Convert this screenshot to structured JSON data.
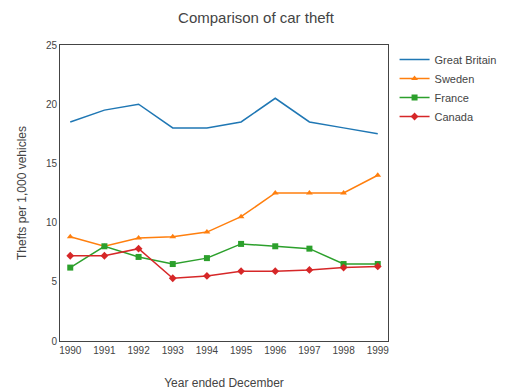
{
  "chart_data": {
    "type": "line",
    "title": "Comparison of car theft",
    "xlabel": "Year ended December",
    "ylabel": "Thefts per 1,000 vehicles",
    "x": [
      1990,
      1991,
      1992,
      1993,
      1994,
      1995,
      1996,
      1997,
      1998,
      1999
    ],
    "series": [
      {
        "name": "Great Britain",
        "values": [
          18.5,
          19.5,
          20.0,
          18.0,
          18.0,
          18.5,
          20.5,
          18.5,
          18.0,
          17.5
        ],
        "line_style": "solid"
      },
      {
        "name": "Sweden",
        "values": [
          8.8,
          8.0,
          8.7,
          8.8,
          9.2,
          10.5,
          12.5,
          12.5,
          12.5,
          14.0
        ],
        "marker": "triangle",
        "line_style": "solid"
      },
      {
        "name": "France",
        "values": [
          6.2,
          8.0,
          7.1,
          6.5,
          7.0,
          8.2,
          8.0,
          7.8,
          6.5,
          6.5
        ],
        "marker": "square",
        "line_style": "solid"
      },
      {
        "name": "Canada",
        "values": [
          7.2,
          7.2,
          7.8,
          5.3,
          5.5,
          5.9,
          5.9,
          6.0,
          6.2,
          6.3
        ],
        "marker": "diamond",
        "line_style": "solid"
      }
    ],
    "xlim": [
      1989.7,
      1999.3
    ],
    "xticks": [
      1990,
      1991,
      1992,
      1993,
      1994,
      1995,
      1996,
      1997,
      1998,
      1999
    ],
    "ylim": [
      0,
      25
    ],
    "yticks": [
      0,
      5,
      10,
      15,
      20,
      25
    ],
    "grid": false,
    "legend": "right"
  }
}
